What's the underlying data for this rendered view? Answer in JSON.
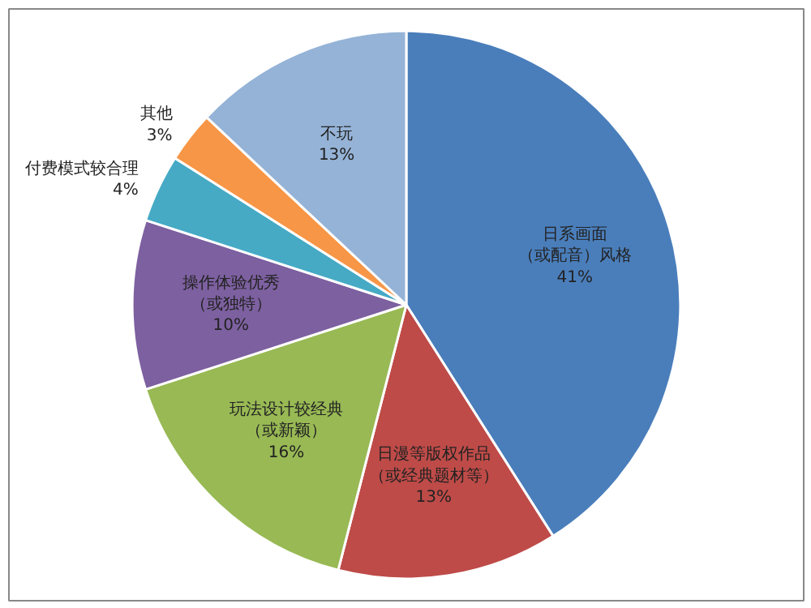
{
  "chart_data": {
    "type": "pie",
    "categories": [
      "日系画面（或配音）风格",
      "日漫等版权作品（或经典题材等）",
      "玩法设计较经典（或新颖）",
      "操作体验优秀（或独特）",
      "付费模式较合理",
      "其他",
      "不玩"
    ],
    "values": [
      41,
      13,
      16,
      10,
      4,
      3,
      13
    ],
    "colors": [
      "#4a7ebb",
      "#be4b48",
      "#98b954",
      "#7d60a0",
      "#46aac5",
      "#f79646",
      "#95b3d7"
    ],
    "value_labels": [
      "41%",
      "13%",
      "16%",
      "10%",
      "4%",
      "3%",
      "13%"
    ]
  }
}
